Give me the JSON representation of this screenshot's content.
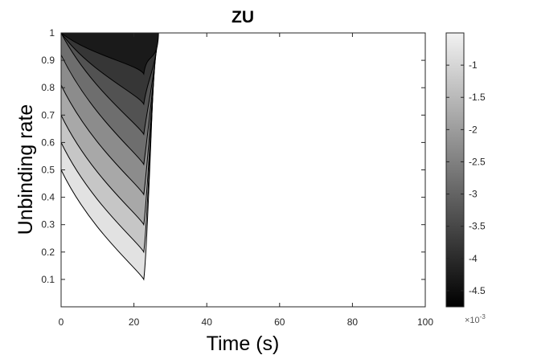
{
  "chart_data": {
    "type": "contour",
    "title": "ZU",
    "xlabel": "Time (s)",
    "ylabel": "Unbinding rate",
    "xlim": [
      0,
      100
    ],
    "ylim": [
      0,
      1
    ],
    "xticks": [
      0,
      20,
      40,
      60,
      80,
      100
    ],
    "yticks": [
      0.1,
      0.2,
      0.3,
      0.4,
      0.5,
      0.6,
      0.7,
      0.8,
      0.9,
      1
    ],
    "grid": false,
    "colormap": "gray",
    "colorbar": {
      "min": -4.75,
      "max": -0.5,
      "ticks": [
        -1,
        -1.5,
        -2,
        -2.5,
        -3,
        -3.5,
        -4,
        -4.5
      ],
      "exponent_label": "×10",
      "exponent": "-3"
    },
    "contour_levels": [
      {
        "vertex_x": 22.7,
        "vertex_y": 0.1,
        "fill": "#e2e2e2"
      },
      {
        "vertex_x": 22.7,
        "vertex_y": 0.2,
        "fill": "#c6c6c6"
      },
      {
        "vertex_x": 22.7,
        "vertex_y": 0.3,
        "fill": "#a8a8a8"
      },
      {
        "vertex_x": 22.7,
        "vertex_y": 0.41,
        "fill": "#8c8c8c"
      },
      {
        "vertex_x": 22.7,
        "vertex_y": 0.52,
        "fill": "#6e6e6e"
      },
      {
        "vertex_x": 22.7,
        "vertex_y": 0.63,
        "fill": "#525252"
      },
      {
        "vertex_x": 22.7,
        "vertex_y": 0.74,
        "fill": "#363636"
      },
      {
        "vertex_x": 22.7,
        "vertex_y": 0.85,
        "fill": "#1a1a1a"
      }
    ],
    "colors": {
      "line": "#000000",
      "axis": "#262626",
      "background": "#ffffff"
    }
  }
}
